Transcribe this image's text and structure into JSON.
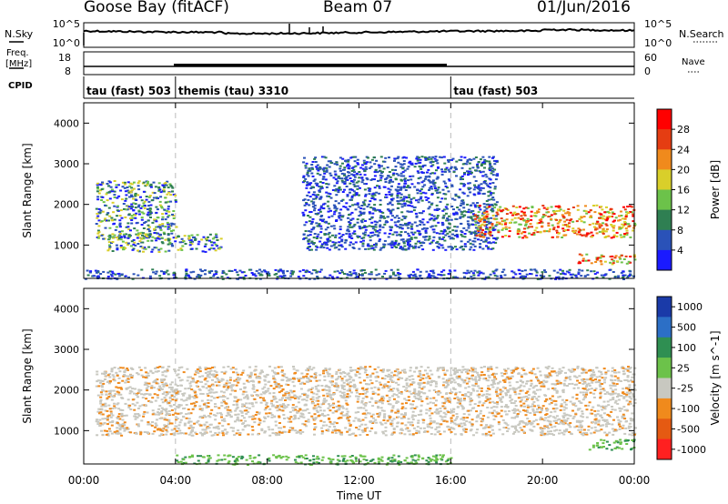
{
  "header": {
    "station": "Goose Bay (fitACF)",
    "beam": "Beam 07",
    "date": "01/Jun/2016"
  },
  "summary": {
    "nsky_label": "N.Sky",
    "nsky_ticks": [
      "10^5",
      "10^0"
    ],
    "nsearch_label": "N.Search",
    "freq_label_1": "Freq.",
    "freq_label_2": "[MHz]",
    "freq_ticks": [
      "18",
      "8"
    ],
    "nave_label": "Nave",
    "nave_ticks": [
      "60",
      "0"
    ],
    "cpid_label": "CPID"
  },
  "cpid_segments": [
    {
      "label": "tau (fast) 503",
      "start_hr": 0,
      "end_hr": 4
    },
    {
      "label": "themis (tau) 3310",
      "start_hr": 4,
      "end_hr": 16
    },
    {
      "label": "tau (fast) 503",
      "start_hr": 16,
      "end_hr": 24
    }
  ],
  "axes": {
    "xlabel": "Time UT",
    "x_ticks": [
      "00:00",
      "04:00",
      "08:00",
      "12:00",
      "16:00",
      "20:00",
      "00:00"
    ],
    "ylabel": "Slant Range [km]",
    "y_ticks": [
      "1000",
      "2000",
      "3000",
      "4000"
    ]
  },
  "chart_data": [
    {
      "type": "heatmap",
      "panel": "power",
      "xlim_hours": [
        0,
        24
      ],
      "ylim_km": [
        180,
        4500
      ],
      "colorbar": {
        "label": "Power [dB]",
        "ticks": [
          "4",
          "8",
          "12",
          "16",
          "20",
          "24",
          "28"
        ],
        "colors": [
          "#1a1aff",
          "#2a52b8",
          "#2f7f52",
          "#6cc24a",
          "#d9cf2a",
          "#f08a1c",
          "#e53d12",
          "#ff0000"
        ]
      },
      "regions": [
        {
          "t0": 0.5,
          "t1": 4.0,
          "r0": 1150,
          "r1": 2600,
          "level": "mid"
        },
        {
          "t0": 1.0,
          "t1": 6.0,
          "r0": 850,
          "r1": 1300,
          "level": "mid"
        },
        {
          "t0": 9.5,
          "t1": 18.0,
          "r0": 900,
          "r1": 3200,
          "level": "low"
        },
        {
          "t0": 17.0,
          "t1": 24.0,
          "r0": 1200,
          "r1": 2000,
          "level": "high"
        },
        {
          "t0": 21.5,
          "t1": 24.0,
          "r0": 550,
          "r1": 800,
          "level": "high"
        },
        {
          "t0": 0.0,
          "t1": 24.0,
          "r0": 180,
          "r1": 420,
          "level": "low"
        }
      ]
    },
    {
      "type": "heatmap",
      "panel": "velocity",
      "xlim_hours": [
        0,
        24
      ],
      "ylim_km": [
        180,
        4500
      ],
      "colorbar": {
        "label": "Velocity [m s^-1]",
        "ticks": [
          "1000",
          "500",
          "100",
          "25",
          "-25",
          "-100",
          "-500",
          "-1000"
        ],
        "colors": [
          "#1a3aa8",
          "#2c6fc6",
          "#2f8f52",
          "#6cc24a",
          "#c8c8c0",
          "#f08a1c",
          "#e55a12",
          "#ff2020"
        ]
      },
      "regions": [
        {
          "t0": 0.5,
          "t1": 24.0,
          "r0": 900,
          "r1": 2600,
          "level": "zero"
        },
        {
          "t0": 22.0,
          "t1": 24.0,
          "r0": 550,
          "r1": 800,
          "level": "positive"
        },
        {
          "t0": 4.0,
          "t1": 16.0,
          "r0": 180,
          "r1": 420,
          "level": "positive"
        }
      ]
    }
  ]
}
